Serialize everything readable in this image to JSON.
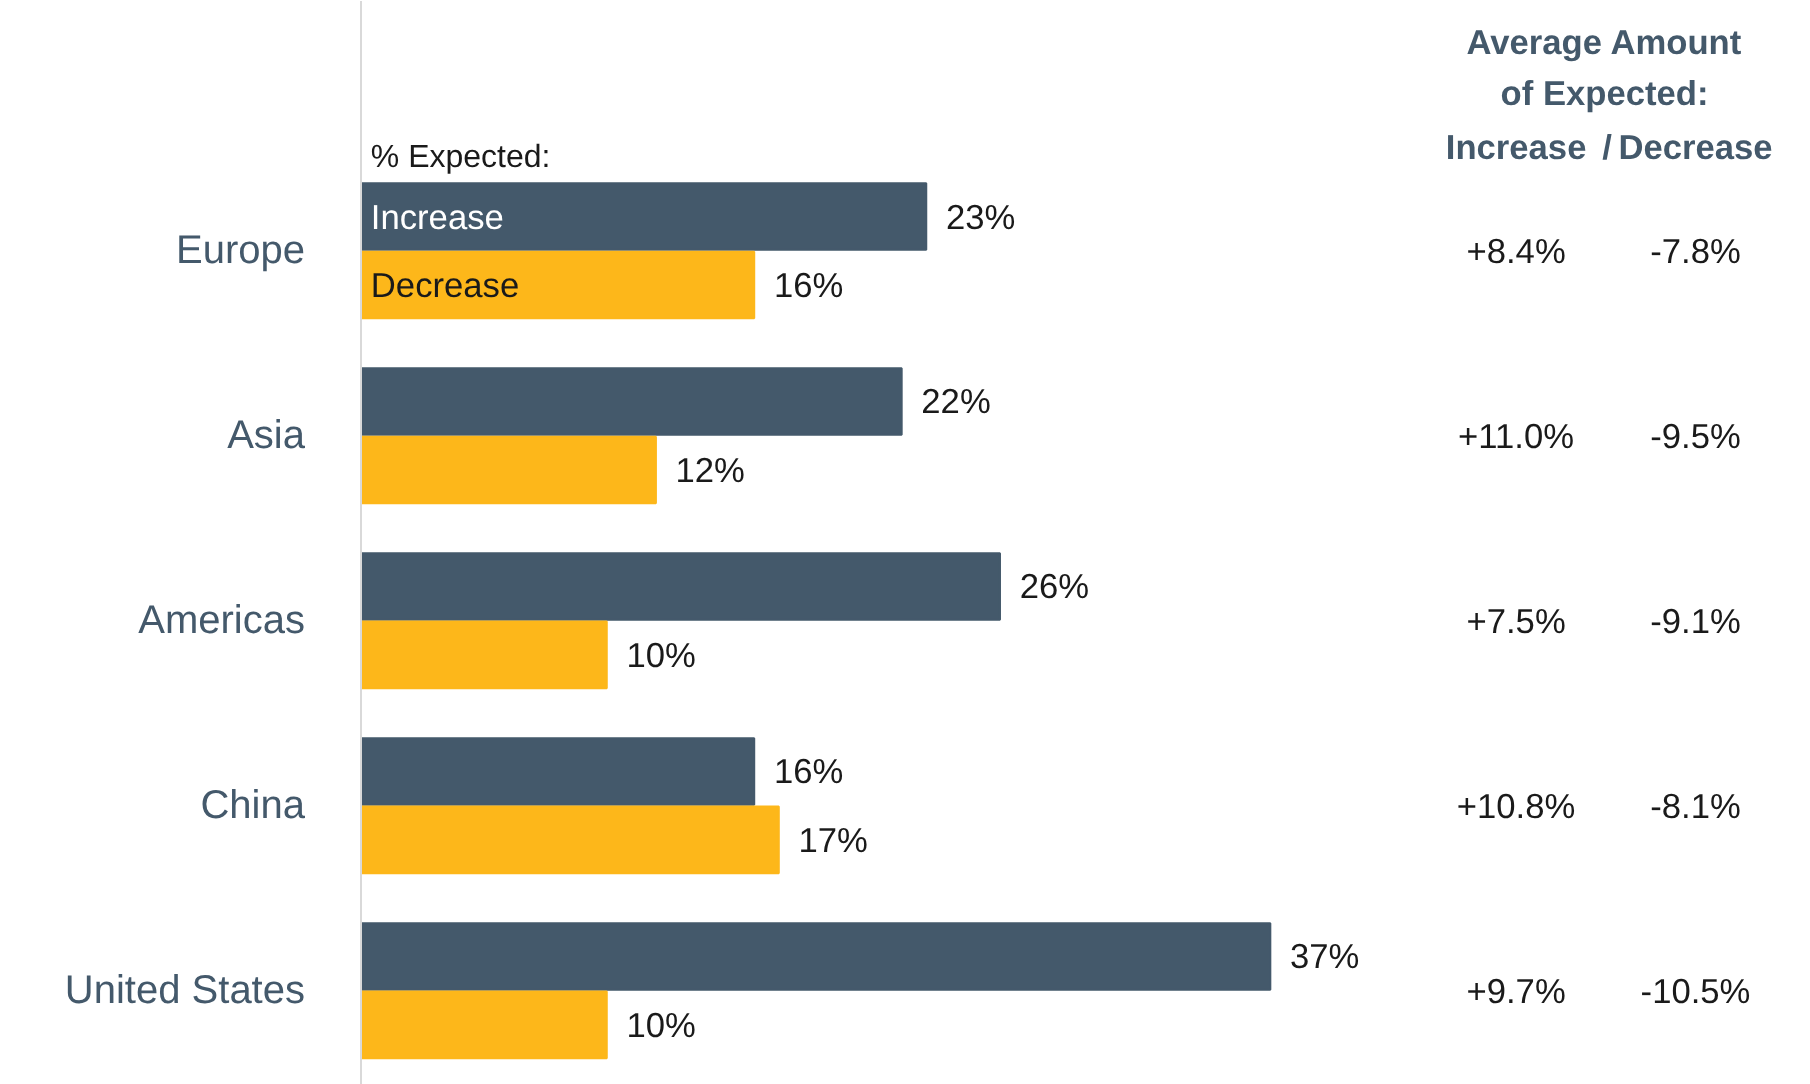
{
  "chart_data": {
    "type": "bar",
    "orientation": "horizontal",
    "legend_title": "% Expected:",
    "categories": [
      "Europe",
      "Asia",
      "Americas",
      "China",
      "United States"
    ],
    "series": [
      {
        "name": "Increase",
        "color": "#44596b",
        "values": [
          23,
          22,
          26,
          16,
          37
        ],
        "value_labels": [
          "23%",
          "22%",
          "26%",
          "16%",
          "37%"
        ]
      },
      {
        "name": "Decrease",
        "color": "#fdb71a",
        "values": [
          16,
          12,
          10,
          17,
          10
        ],
        "value_labels": [
          "16%",
          "12%",
          "10%",
          "17%",
          "10%"
        ]
      }
    ],
    "annotations": [
      "Average Amount",
      "of Expected:",
      "Increase",
      "/",
      "Decrease",
      "+8.4%",
      "-7.8%",
      "+11.0%",
      "-9.5%",
      "+7.5%",
      "-9.1%",
      "+10.8%",
      "-8.1%",
      "+9.7%",
      "-10.5%"
    ]
  }
}
